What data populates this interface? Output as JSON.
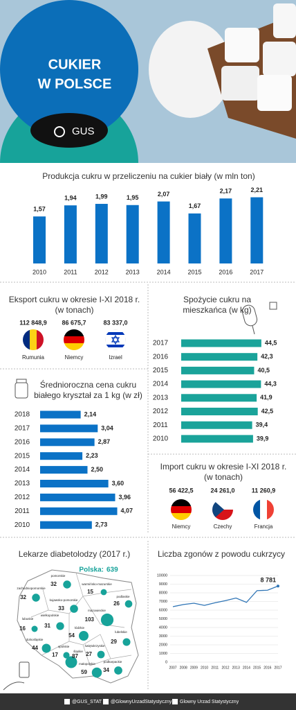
{
  "header": {
    "title_line1": "CUKIER",
    "title_line2": "W POLSCE",
    "logo": "GUS"
  },
  "chart_data": [
    {
      "type": "bar",
      "title": "Produkcja cukru w przeliczeniu na cukier biały (w mln ton)",
      "categories": [
        "2010",
        "2011",
        "2012",
        "2013",
        "2014",
        "2015",
        "2016",
        "2017"
      ],
      "values": [
        1.57,
        1.94,
        1.99,
        1.95,
        2.07,
        1.67,
        2.17,
        2.21
      ],
      "value_labels": [
        "1,57",
        "1,94",
        "1,99",
        "1,95",
        "2,07",
        "1,67",
        "2,17",
        "2,21"
      ],
      "color": "#0b72c6",
      "ylim": [
        0,
        2.5
      ]
    },
    {
      "type": "hbar",
      "title": "Spożycie cukru na mieszkańca (w kg)",
      "categories": [
        "2017",
        "2016",
        "2015",
        "2014",
        "2013",
        "2012",
        "2011",
        "2010"
      ],
      "values": [
        44.5,
        42.3,
        40.5,
        44.3,
        41.9,
        42.5,
        39.4,
        39.9
      ],
      "value_labels": [
        "44,5",
        "42,3",
        "40,5",
        "44,3",
        "41,9",
        "42,5",
        "39,4",
        "39,9"
      ],
      "color": "#1aa39a",
      "xlim": [
        0,
        48
      ]
    },
    {
      "type": "hbar",
      "title": "Średnioroczna cena cukru białego kryształ za 1 kg (w zł)",
      "categories": [
        "2018",
        "2017",
        "2016",
        "2015",
        "2014",
        "2013",
        "2012",
        "2011",
        "2010"
      ],
      "values": [
        2.14,
        3.04,
        2.87,
        2.23,
        2.5,
        3.6,
        3.96,
        4.07,
        2.73
      ],
      "value_labels": [
        "2,14",
        "3,04",
        "2,87",
        "2,23",
        "2,50",
        "3,60",
        "3,96",
        "4,07",
        "2,73"
      ],
      "color": "#0b72c6",
      "xlim": [
        0,
        5
      ]
    },
    {
      "type": "line",
      "title": "Liczba zgonów z powodu cukrzycy",
      "categories": [
        "2007",
        "2008",
        "2009",
        "2010",
        "2011",
        "2012",
        "2013",
        "2014",
        "2015",
        "2016",
        "2017"
      ],
      "values": [
        6400,
        6650,
        6800,
        6550,
        6850,
        7100,
        7400,
        6900,
        8250,
        8300,
        8781
      ],
      "value_labels": [
        null,
        null,
        null,
        null,
        null,
        null,
        null,
        null,
        null,
        null,
        "8 781"
      ],
      "color": "#2e74b5",
      "ylim": [
        0,
        10000
      ],
      "yticks": [
        0,
        1000,
        2000,
        3000,
        4000,
        5000,
        6000,
        7000,
        8000,
        9000,
        10000
      ],
      "grid": true
    }
  ],
  "export": {
    "title": "Eksport cukru w okresie I-XI 2018 r. (w tonach)",
    "items": [
      {
        "amount": "112 848,9",
        "country": "Rumunia"
      },
      {
        "amount": "86 675,7",
        "country": "Niemcy"
      },
      {
        "amount": "83 337,0",
        "country": "Izrael"
      }
    ]
  },
  "import": {
    "title": "Import cukru w okresie I-XI 2018 r. (w tonach)",
    "items": [
      {
        "amount": "56 422,5",
        "country": "Niemcy"
      },
      {
        "amount": "24 261,0",
        "country": "Czechy"
      },
      {
        "amount": "11 260,9",
        "country": "Francja"
      }
    ]
  },
  "map": {
    "title": "Lekarze diabetolodzy (2017 r.)",
    "total_label": "Polska:",
    "total": 639,
    "regions": [
      {
        "name": "pomorskie",
        "value": 32
      },
      {
        "name": "zachodniopomorskie",
        "value": 32
      },
      {
        "name": "warmińsko-mazurskie",
        "value": 15
      },
      {
        "name": "podlaskie",
        "value": 26
      },
      {
        "name": "kujawsko-pomorskie",
        "value": 33
      },
      {
        "name": "mazowieckie",
        "value": 103
      },
      {
        "name": "wielkopolskie",
        "value": 31
      },
      {
        "name": "lubuskie",
        "value": 16
      },
      {
        "name": "łódzkie",
        "value": 54
      },
      {
        "name": "lubelskie",
        "value": 29
      },
      {
        "name": "dolnośląskie",
        "value": 44
      },
      {
        "name": "opolskie",
        "value": 17
      },
      {
        "name": "śląskie",
        "value": 87
      },
      {
        "name": "świętokrzyskie",
        "value": 27
      },
      {
        "name": "małopolskie",
        "value": 59
      },
      {
        "name": "podkarpackie",
        "value": 34
      }
    ]
  },
  "footer": {
    "twitter": "@GUS_STAT",
    "facebook": "@GlownyUrzadStatystyczny",
    "linkedin": "Glowny Urzad Statystyczny"
  }
}
